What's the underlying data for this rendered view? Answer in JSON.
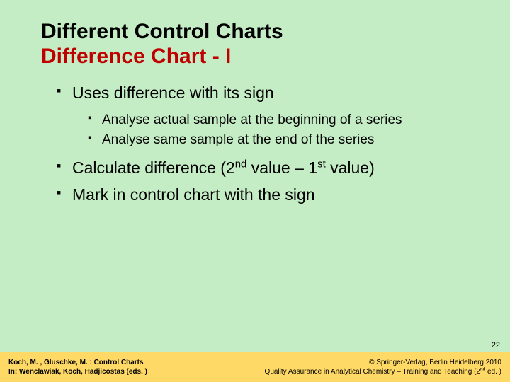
{
  "colors": {
    "background": "#c5edc5",
    "title_primary": "#000000",
    "title_accent": "#c00000",
    "body_text": "#000000",
    "bullet_color": "#000000",
    "footer_bg": "#ffd966",
    "footer_text": "#000000"
  },
  "typography": {
    "title_fontsize_pt": 23,
    "body_l1_fontsize_pt": 17,
    "body_l2_fontsize_pt": 14,
    "footer_fontsize_pt": 8,
    "pagenum_fontsize_pt": 8,
    "font_family": "Arial"
  },
  "title": {
    "line1": "Different Control Charts",
    "line2": "Difference Chart - I"
  },
  "bullets": [
    {
      "text": "Uses difference with its sign",
      "sub": [
        "Analyse actual sample at the beginning of a series",
        "Analyse same sample at the end of the series"
      ]
    },
    {
      "html": "Calculate difference (2<span class=\"sup\">nd</span> value – 1<span class=\"sup\">st</span> value)"
    },
    {
      "text": "Mark in control chart with the sign"
    }
  ],
  "page_number": "22",
  "footer": {
    "left_line1": "Koch, M. , Gluschke, M. : Control Charts",
    "left_line2": "In: Wenclawiak, Koch, Hadjicostas (eds. )",
    "right_line1": "© Springer-Verlag, Berlin Heidelberg 2010",
    "right_line2_html": "Quality Assurance in Analytical Chemistry – Training and Teaching (2<span class=\"sup\">nd</span> ed. )"
  }
}
